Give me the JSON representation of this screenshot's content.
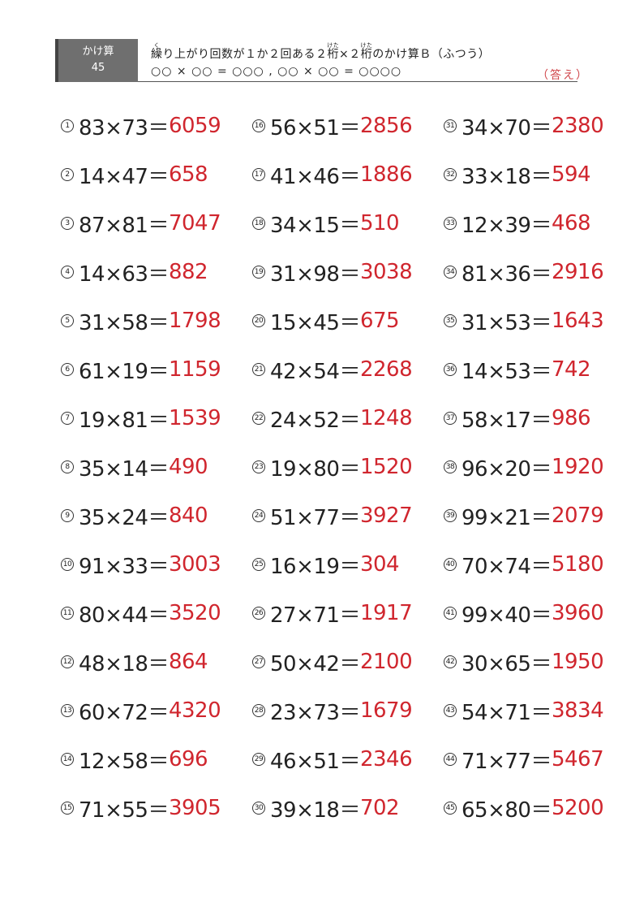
{
  "header": {
    "category": "かけ算",
    "number": "45",
    "title_parts": [
      "繰",
      "り上がり回数が１か２回ある２",
      "桁",
      "×２",
      "桁",
      "のかけ算Ｂ（ふつう）"
    ],
    "ruby": {
      "kuri": "く",
      "keta": "けた"
    },
    "subtitle": "○○ × ○○ = ○○○ , ○○ × ○○ = ○○○○",
    "answer_label": "（答え）"
  },
  "problems": [
    {
      "n": "1",
      "q": "83×73＝",
      "a": "6059"
    },
    {
      "n": "2",
      "q": "14×47＝",
      "a": "658"
    },
    {
      "n": "3",
      "q": "87×81＝",
      "a": "7047"
    },
    {
      "n": "4",
      "q": "14×63＝",
      "a": "882"
    },
    {
      "n": "5",
      "q": "31×58＝",
      "a": "1798"
    },
    {
      "n": "6",
      "q": "61×19＝",
      "a": "1159"
    },
    {
      "n": "7",
      "q": "19×81＝",
      "a": "1539"
    },
    {
      "n": "8",
      "q": "35×14＝",
      "a": "490"
    },
    {
      "n": "9",
      "q": "35×24＝",
      "a": "840"
    },
    {
      "n": "10",
      "q": "91×33＝",
      "a": "3003"
    },
    {
      "n": "11",
      "q": "80×44＝",
      "a": "3520"
    },
    {
      "n": "12",
      "q": "48×18＝",
      "a": "864"
    },
    {
      "n": "13",
      "q": "60×72＝",
      "a": "4320"
    },
    {
      "n": "14",
      "q": "12×58＝",
      "a": "696"
    },
    {
      "n": "15",
      "q": "71×55＝",
      "a": "3905"
    },
    {
      "n": "16",
      "q": "56×51＝",
      "a": "2856"
    },
    {
      "n": "17",
      "q": "41×46＝",
      "a": "1886"
    },
    {
      "n": "18",
      "q": "34×15＝",
      "a": "510"
    },
    {
      "n": "19",
      "q": "31×98＝",
      "a": "3038"
    },
    {
      "n": "20",
      "q": "15×45＝",
      "a": "675"
    },
    {
      "n": "21",
      "q": "42×54＝",
      "a": "2268"
    },
    {
      "n": "22",
      "q": "24×52＝",
      "a": "1248"
    },
    {
      "n": "23",
      "q": "19×80＝",
      "a": "1520"
    },
    {
      "n": "24",
      "q": "51×77＝",
      "a": "3927"
    },
    {
      "n": "25",
      "q": "16×19＝",
      "a": "304"
    },
    {
      "n": "26",
      "q": "27×71＝",
      "a": "1917"
    },
    {
      "n": "27",
      "q": "50×42＝",
      "a": "2100"
    },
    {
      "n": "28",
      "q": "23×73＝",
      "a": "1679"
    },
    {
      "n": "29",
      "q": "46×51＝",
      "a": "2346"
    },
    {
      "n": "30",
      "q": "39×18＝",
      "a": "702"
    },
    {
      "n": "31",
      "q": "34×70＝",
      "a": "2380"
    },
    {
      "n": "32",
      "q": "33×18＝",
      "a": "594"
    },
    {
      "n": "33",
      "q": "12×39＝",
      "a": "468"
    },
    {
      "n": "34",
      "q": "81×36＝",
      "a": "2916"
    },
    {
      "n": "35",
      "q": "31×53＝",
      "a": "1643"
    },
    {
      "n": "36",
      "q": "14×53＝",
      "a": "742"
    },
    {
      "n": "37",
      "q": "58×17＝",
      "a": "986"
    },
    {
      "n": "38",
      "q": "96×20＝",
      "a": "1920"
    },
    {
      "n": "39",
      "q": "99×21＝",
      "a": "2079"
    },
    {
      "n": "40",
      "q": "70×74＝",
      "a": "5180"
    },
    {
      "n": "41",
      "q": "99×40＝",
      "a": "3960"
    },
    {
      "n": "42",
      "q": "30×65＝",
      "a": "1950"
    },
    {
      "n": "43",
      "q": "54×71＝",
      "a": "3834"
    },
    {
      "n": "44",
      "q": "71×77＝",
      "a": "5467"
    },
    {
      "n": "45",
      "q": "65×80＝",
      "a": "5200"
    }
  ],
  "colors": {
    "answer": "#d0262e",
    "badge": "#6f6f6f"
  }
}
